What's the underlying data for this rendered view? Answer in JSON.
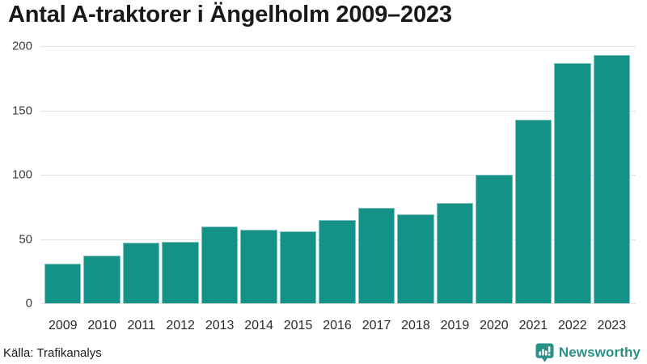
{
  "title": "Antal A-traktorer i Ängelholm 2009–2023",
  "footer": {
    "source": "Källa: Trafikanalys",
    "brand": "Newsworthy"
  },
  "colors": {
    "bar": "#149287",
    "brand": "#2b9087",
    "grid": "#e3e3e3",
    "title_text": "#191919",
    "tick_text": "#3d3d3d"
  },
  "chart_data": {
    "type": "bar",
    "title": "Antal A-traktorer i Ängelholm 2009–2023",
    "categories": [
      "2009",
      "2010",
      "2011",
      "2012",
      "2013",
      "2014",
      "2015",
      "2016",
      "2017",
      "2018",
      "2019",
      "2020",
      "2021",
      "2022",
      "2023"
    ],
    "values": [
      31,
      37,
      47,
      48,
      60,
      57,
      56,
      65,
      74,
      69,
      78,
      100,
      143,
      187,
      193
    ],
    "xlabel": "",
    "ylabel": "",
    "ylim": [
      0,
      200
    ],
    "yticks": [
      0,
      50,
      100,
      150,
      200
    ],
    "grid": true,
    "legend": false,
    "bar_color": "#149287",
    "source": "Källa: Trafikanalys"
  }
}
